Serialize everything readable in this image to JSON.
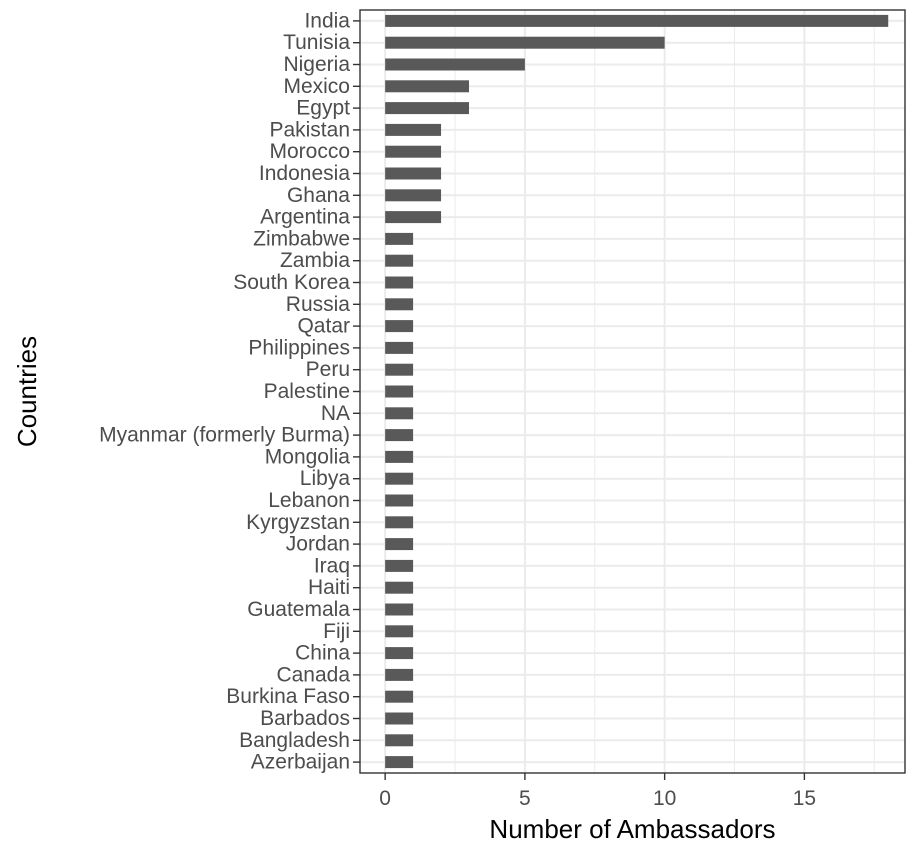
{
  "chart_data": {
    "type": "bar",
    "orientation": "horizontal",
    "xlabel": "Number of Ambassadors",
    "ylabel": "Countries",
    "xlim": [
      -0.9,
      18.6
    ],
    "xticks": [
      0,
      5,
      10,
      15
    ],
    "grid": true,
    "bar_color": "#595959",
    "categories": [
      "India",
      "Tunisia",
      "Nigeria",
      "Mexico",
      "Egypt",
      "Pakistan",
      "Morocco",
      "Indonesia",
      "Ghana",
      "Argentina",
      "Zimbabwe",
      "Zambia",
      "South Korea",
      "Russia",
      "Qatar",
      "Philippines",
      "Peru",
      "Palestine",
      "NA",
      "Myanmar (formerly Burma)",
      "Mongolia",
      "Libya",
      "Lebanon",
      "Kyrgyzstan",
      "Jordan",
      "Iraq",
      "Haiti",
      "Guatemala",
      "Fiji",
      "China",
      "Canada",
      "Burkina Faso",
      "Barbados",
      "Bangladesh",
      "Azerbaijan"
    ],
    "values": [
      18,
      10,
      5,
      3,
      3,
      2,
      2,
      2,
      2,
      2,
      1,
      1,
      1,
      1,
      1,
      1,
      1,
      1,
      1,
      1,
      1,
      1,
      1,
      1,
      1,
      1,
      1,
      1,
      1,
      1,
      1,
      1,
      1,
      1,
      1
    ]
  }
}
